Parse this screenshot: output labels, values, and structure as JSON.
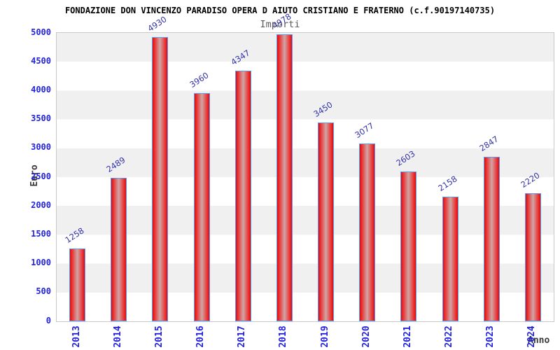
{
  "title": "FONDAZIONE DON VINCENZO PARADISO OPERA D AIUTO CRISTIANO E FRATERNO (c.f.90197140735)",
  "subtitle": "Importi",
  "chart_data": {
    "type": "bar",
    "title": "FONDAZIONE DON VINCENZO PARADISO OPERA D AIUTO CRISTIANO E FRATERNO (c.f.90197140735)",
    "subtitle": "Importi",
    "categories": [
      "2013",
      "2014",
      "2015",
      "2016",
      "2017",
      "2018",
      "2019",
      "2020",
      "2021",
      "2022",
      "2023",
      "2024"
    ],
    "values": [
      1258,
      2489,
      4930,
      3960,
      4347,
      4978,
      3450,
      3077,
      2603,
      2158,
      2847,
      2220
    ],
    "xlabel": "Anno",
    "ylabel": "Euro",
    "ylim": [
      0,
      5000
    ],
    "ytick_step": 500,
    "yticks": [
      "0",
      "500",
      "1000",
      "1500",
      "2000",
      "2500",
      "3000",
      "3500",
      "4000",
      "4500",
      "5000"
    ],
    "grid": "alternating-horizontal-bands",
    "legend": "none",
    "colors": {
      "bar_fill": "#ee2a2a",
      "bar_fill_center": "#cfa6a6",
      "bar_border": "#5b9cf8",
      "tick_label": "#2222dd",
      "value_label": "#3434a8",
      "band_gray": "#f0f0f0",
      "band_white": "#ffffff",
      "axis_border": "#c9c9c9",
      "title": "#000000",
      "subtitle": "#5a5a5a",
      "axis_title": "#3a3a3a"
    }
  }
}
